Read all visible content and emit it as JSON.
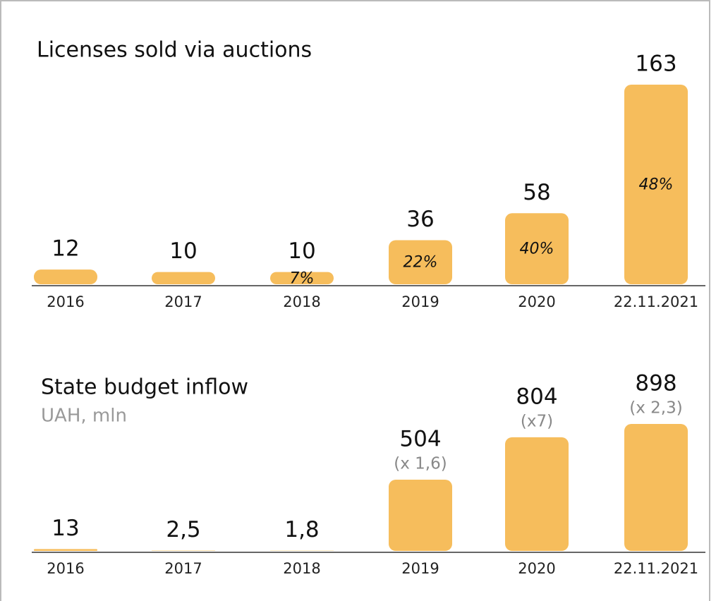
{
  "chart_data": [
    {
      "type": "bar",
      "title": "Licenses sold via auctions",
      "categories": [
        "2016",
        "2017",
        "2018",
        "2019",
        "2020",
        "22.11.2021"
      ],
      "values": [
        12,
        10,
        10,
        36,
        58,
        163
      ],
      "share_labels": [
        null,
        null,
        "7%",
        "22%",
        "40%",
        "48%"
      ],
      "color": "#f6bd5c"
    },
    {
      "type": "bar",
      "title": "State budget inflow",
      "subtitle": "UAH, mln",
      "categories": [
        "2016",
        "2017",
        "2018",
        "2019",
        "2020",
        "22.11.2021"
      ],
      "values": [
        13,
        2.5,
        1.8,
        504,
        804,
        898
      ],
      "value_labels": [
        "13",
        "2,5",
        "1,8",
        "504",
        "804",
        "898"
      ],
      "growth_labels": [
        null,
        null,
        null,
        "(x 1,6)",
        "(x7)",
        "(x 2,3)"
      ],
      "color": "#f6bd5c"
    }
  ]
}
